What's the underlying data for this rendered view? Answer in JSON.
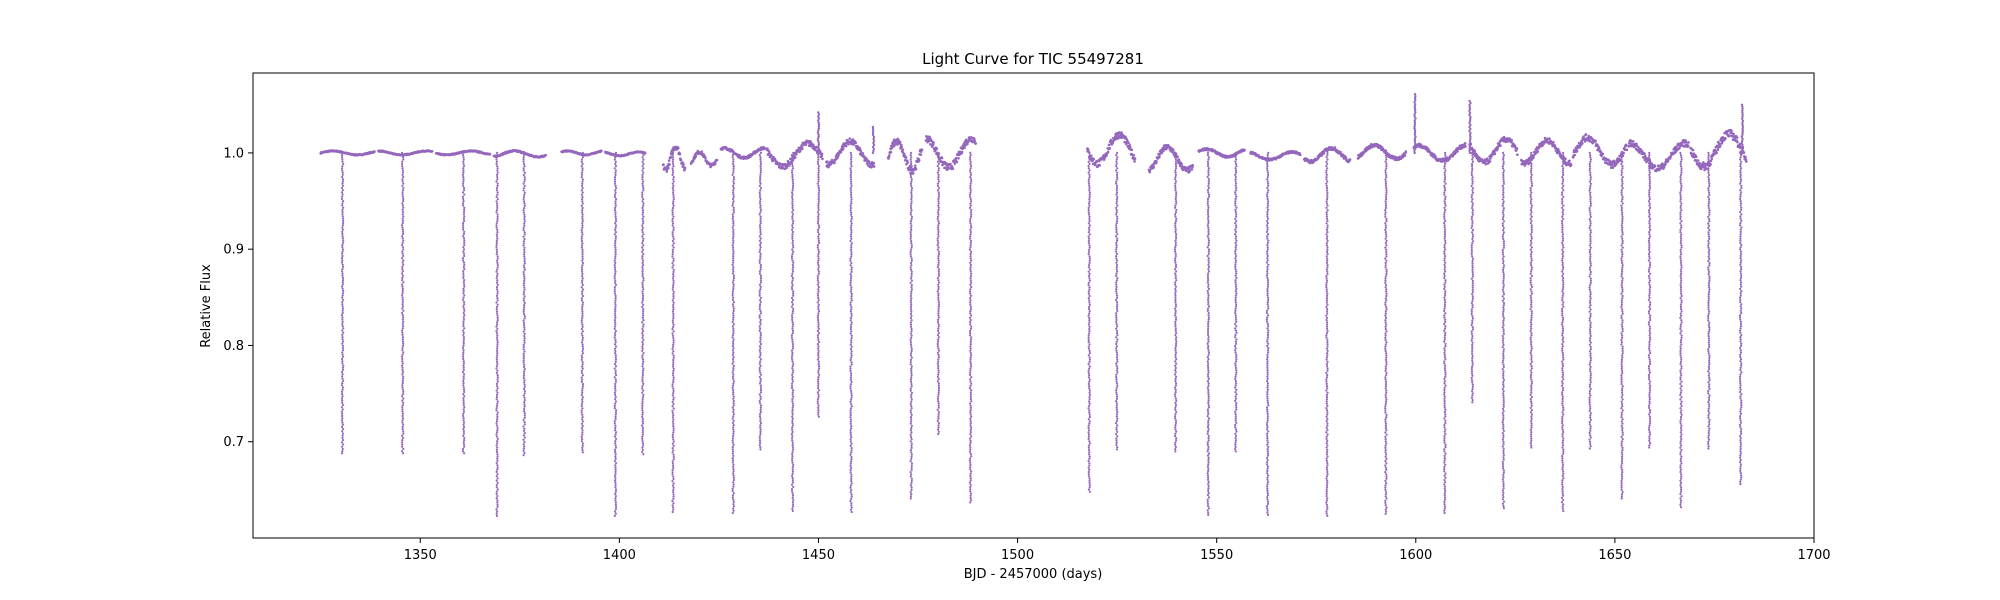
{
  "chart_data": {
    "type": "scatter",
    "title": "Light Curve for TIC 55497281",
    "xlabel": "BJD - 2457000 (days)",
    "ylabel": "Relative Flux",
    "xlim": [
      1308,
      1700
    ],
    "ylim": [
      0.6,
      1.083
    ],
    "xticks": [
      1350,
      1400,
      1450,
      1500,
      1550,
      1600,
      1650,
      1700
    ],
    "yticks": [
      0.7,
      0.8,
      0.9,
      1.0
    ],
    "grid": false,
    "legend": "none",
    "marker_color": "#9467bd",
    "baseline_segments": [
      {
        "start": 1325.0,
        "end": 1338.5,
        "flux": 1.0,
        "variability": 0.002
      },
      {
        "start": 1339.5,
        "end": 1353.0,
        "flux": 1.0,
        "variability": 0.002
      },
      {
        "start": 1354.0,
        "end": 1367.5,
        "flux": 1.0,
        "variability": 0.002
      },
      {
        "start": 1368.5,
        "end": 1381.5,
        "flux": 0.999,
        "variability": 0.003
      },
      {
        "start": 1385.5,
        "end": 1395.5,
        "flux": 1.0,
        "variability": 0.002
      },
      {
        "start": 1396.5,
        "end": 1406.5,
        "flux": 0.999,
        "variability": 0.002
      },
      {
        "start": 1411.0,
        "end": 1416.5,
        "flux": 0.995,
        "variability": 0.012
      },
      {
        "start": 1418.0,
        "end": 1424.5,
        "flux": 0.994,
        "variability": 0.007
      },
      {
        "start": 1425.5,
        "end": 1436.5,
        "flux": 1.0,
        "variability": 0.005
      },
      {
        "start": 1437.0,
        "end": 1451.0,
        "flux": 0.998,
        "variability": 0.012
      },
      {
        "start": 1452.0,
        "end": 1464.0,
        "flux": 1.0,
        "variability": 0.012
      },
      {
        "start": 1467.5,
        "end": 1476.0,
        "flux": 0.997,
        "variability": 0.015
      },
      {
        "start": 1477.0,
        "end": 1489.5,
        "flux": 1.0,
        "variability": 0.015
      },
      {
        "start": 1517.5,
        "end": 1529.5,
        "flux": 1.004,
        "variability": 0.015
      },
      {
        "start": 1533.0,
        "end": 1544.0,
        "flux": 0.994,
        "variability": 0.012
      },
      {
        "start": 1545.5,
        "end": 1557.0,
        "flux": 1.0,
        "variability": 0.004
      },
      {
        "start": 1558.5,
        "end": 1571.0,
        "flux": 0.997,
        "variability": 0.004
      },
      {
        "start": 1572.0,
        "end": 1583.5,
        "flux": 0.998,
        "variability": 0.007
      },
      {
        "start": 1585.5,
        "end": 1597.5,
        "flux": 1.001,
        "variability": 0.007
      },
      {
        "start": 1599.5,
        "end": 1612.5,
        "flux": 1.0,
        "variability": 0.008
      },
      {
        "start": 1613.5,
        "end": 1625.5,
        "flux": 1.002,
        "variability": 0.012
      },
      {
        "start": 1626.5,
        "end": 1639.0,
        "flux": 1.001,
        "variability": 0.012
      },
      {
        "start": 1639.5,
        "end": 1653.0,
        "flux": 1.002,
        "variability": 0.014
      },
      {
        "start": 1653.5,
        "end": 1668.5,
        "flux": 0.997,
        "variability": 0.013
      },
      {
        "start": 1669.0,
        "end": 1683.0,
        "flux": 1.003,
        "variability": 0.017
      }
    ],
    "eclipses": [
      {
        "time": 1330.5,
        "min_flux": 0.688
      },
      {
        "time": 1345.6,
        "min_flux": 0.688
      },
      {
        "time": 1360.9,
        "min_flux": 0.688
      },
      {
        "time": 1369.3,
        "min_flux": 0.623
      },
      {
        "time": 1376.1,
        "min_flux": 0.686
      },
      {
        "time": 1390.7,
        "min_flux": 0.689
      },
      {
        "time": 1399.0,
        "min_flux": 0.623
      },
      {
        "time": 1405.9,
        "min_flux": 0.687
      },
      {
        "time": 1413.5,
        "min_flux": 0.627
      },
      {
        "time": 1428.6,
        "min_flux": 0.626
      },
      {
        "time": 1435.4,
        "min_flux": 0.692
      },
      {
        "time": 1443.5,
        "min_flux": 0.628
      },
      {
        "time": 1450.0,
        "min_flux": 0.726
      },
      {
        "time": 1458.2,
        "min_flux": 0.627
      },
      {
        "time": 1473.3,
        "min_flux": 0.641
      },
      {
        "time": 1480.1,
        "min_flux": 0.708
      },
      {
        "time": 1488.2,
        "min_flux": 0.637
      },
      {
        "time": 1518.0,
        "min_flux": 0.648
      },
      {
        "time": 1524.9,
        "min_flux": 0.692
      },
      {
        "time": 1539.7,
        "min_flux": 0.69
      },
      {
        "time": 1547.9,
        "min_flux": 0.624
      },
      {
        "time": 1554.8,
        "min_flux": 0.69
      },
      {
        "time": 1562.8,
        "min_flux": 0.624
      },
      {
        "time": 1577.7,
        "min_flux": 0.623
      },
      {
        "time": 1592.5,
        "min_flux": 0.625
      },
      {
        "time": 1607.3,
        "min_flux": 0.626
      },
      {
        "time": 1614.2,
        "min_flux": 0.741
      },
      {
        "time": 1622.0,
        "min_flux": 0.631
      },
      {
        "time": 1629.0,
        "min_flux": 0.694
      },
      {
        "time": 1636.9,
        "min_flux": 0.628
      },
      {
        "time": 1643.8,
        "min_flux": 0.693
      },
      {
        "time": 1651.8,
        "min_flux": 0.641
      },
      {
        "time": 1658.7,
        "min_flux": 0.694
      },
      {
        "time": 1666.6,
        "min_flux": 0.632
      },
      {
        "time": 1673.6,
        "min_flux": 0.693
      },
      {
        "time": 1681.6,
        "min_flux": 0.656
      }
    ],
    "flares": [
      {
        "time": 1450.0,
        "max_flux": 1.042
      },
      {
        "time": 1463.8,
        "max_flux": 1.027
      },
      {
        "time": 1599.8,
        "max_flux": 1.061
      },
      {
        "time": 1613.6,
        "max_flux": 1.054
      },
      {
        "time": 1682.0,
        "max_flux": 1.05
      }
    ]
  }
}
